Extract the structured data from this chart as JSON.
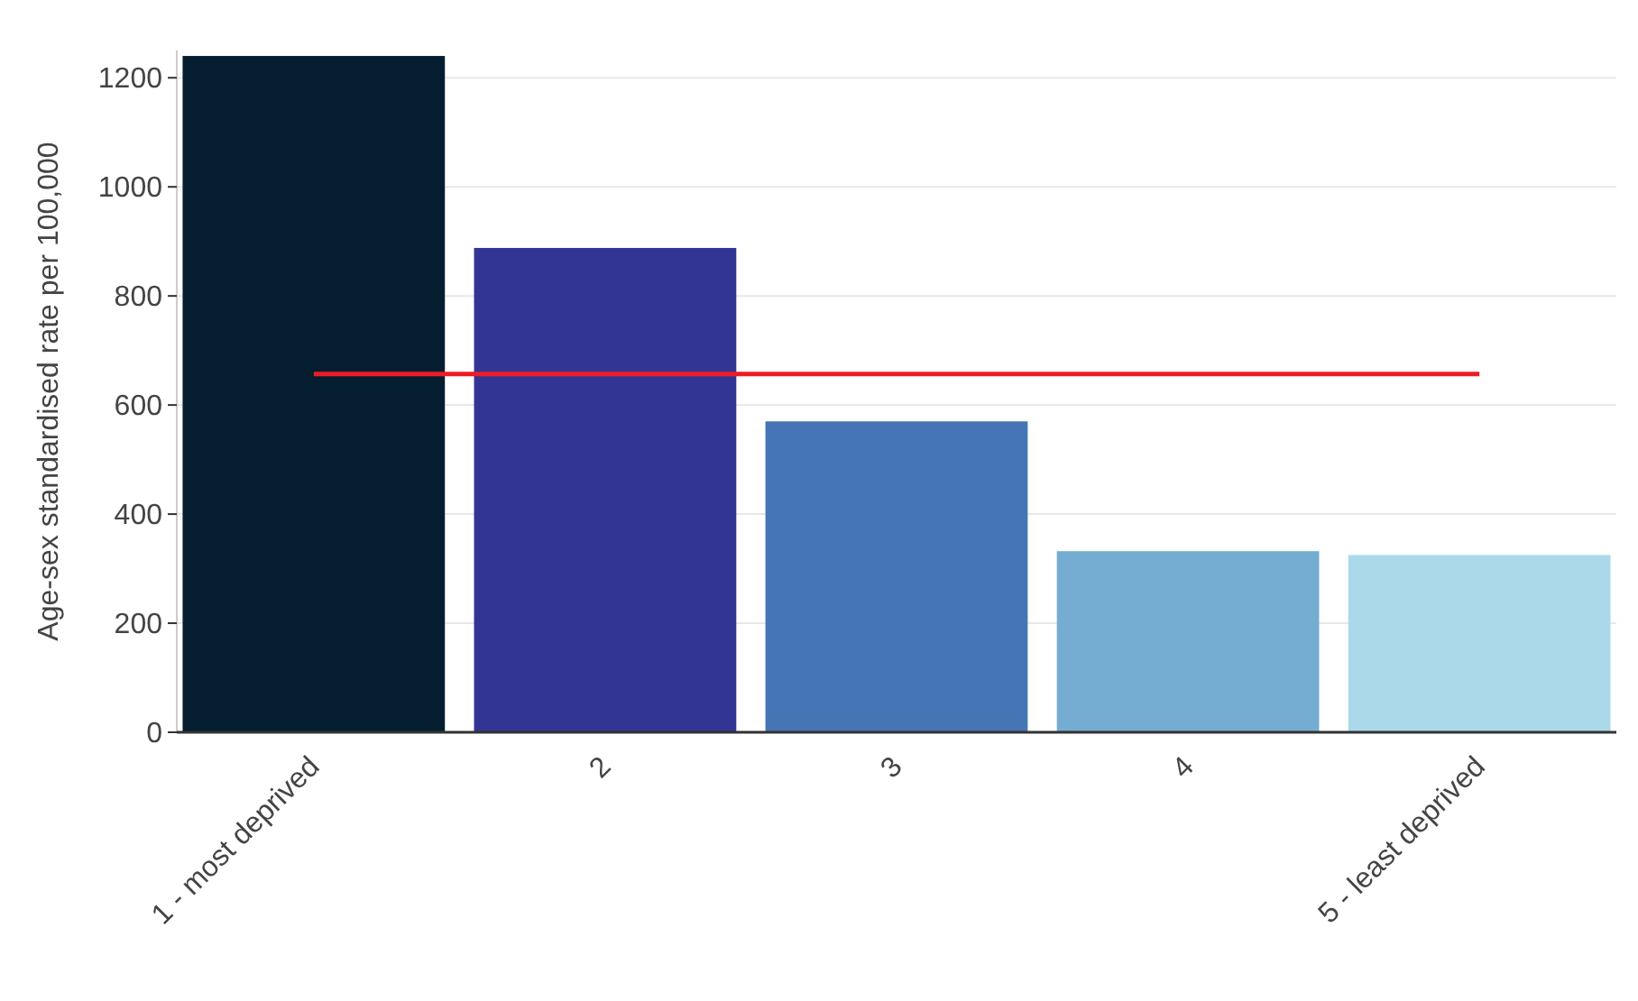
{
  "chart_data": {
    "type": "bar",
    "ylabel": "Age-sex standardised rate per 100,000",
    "categories": [
      "1 - most deprived",
      "2",
      "3",
      "4",
      "5 - least deprived"
    ],
    "series": [
      {
        "colors": [
          "#041e2f",
          "#333594",
          "#4575b4",
          "#74add1",
          "#abd9e9"
        ],
        "values": [
          1240,
          888,
          570,
          332,
          325
        ]
      },
      {
        "type": "line",
        "color": "#ee1c25",
        "values": [
          657,
          657,
          657,
          657,
          657
        ]
      }
    ],
    "ylim": [
      0,
      1250
    ],
    "yticks": [
      0,
      200,
      400,
      600,
      800,
      1000,
      1200
    ],
    "grid": "y"
  }
}
